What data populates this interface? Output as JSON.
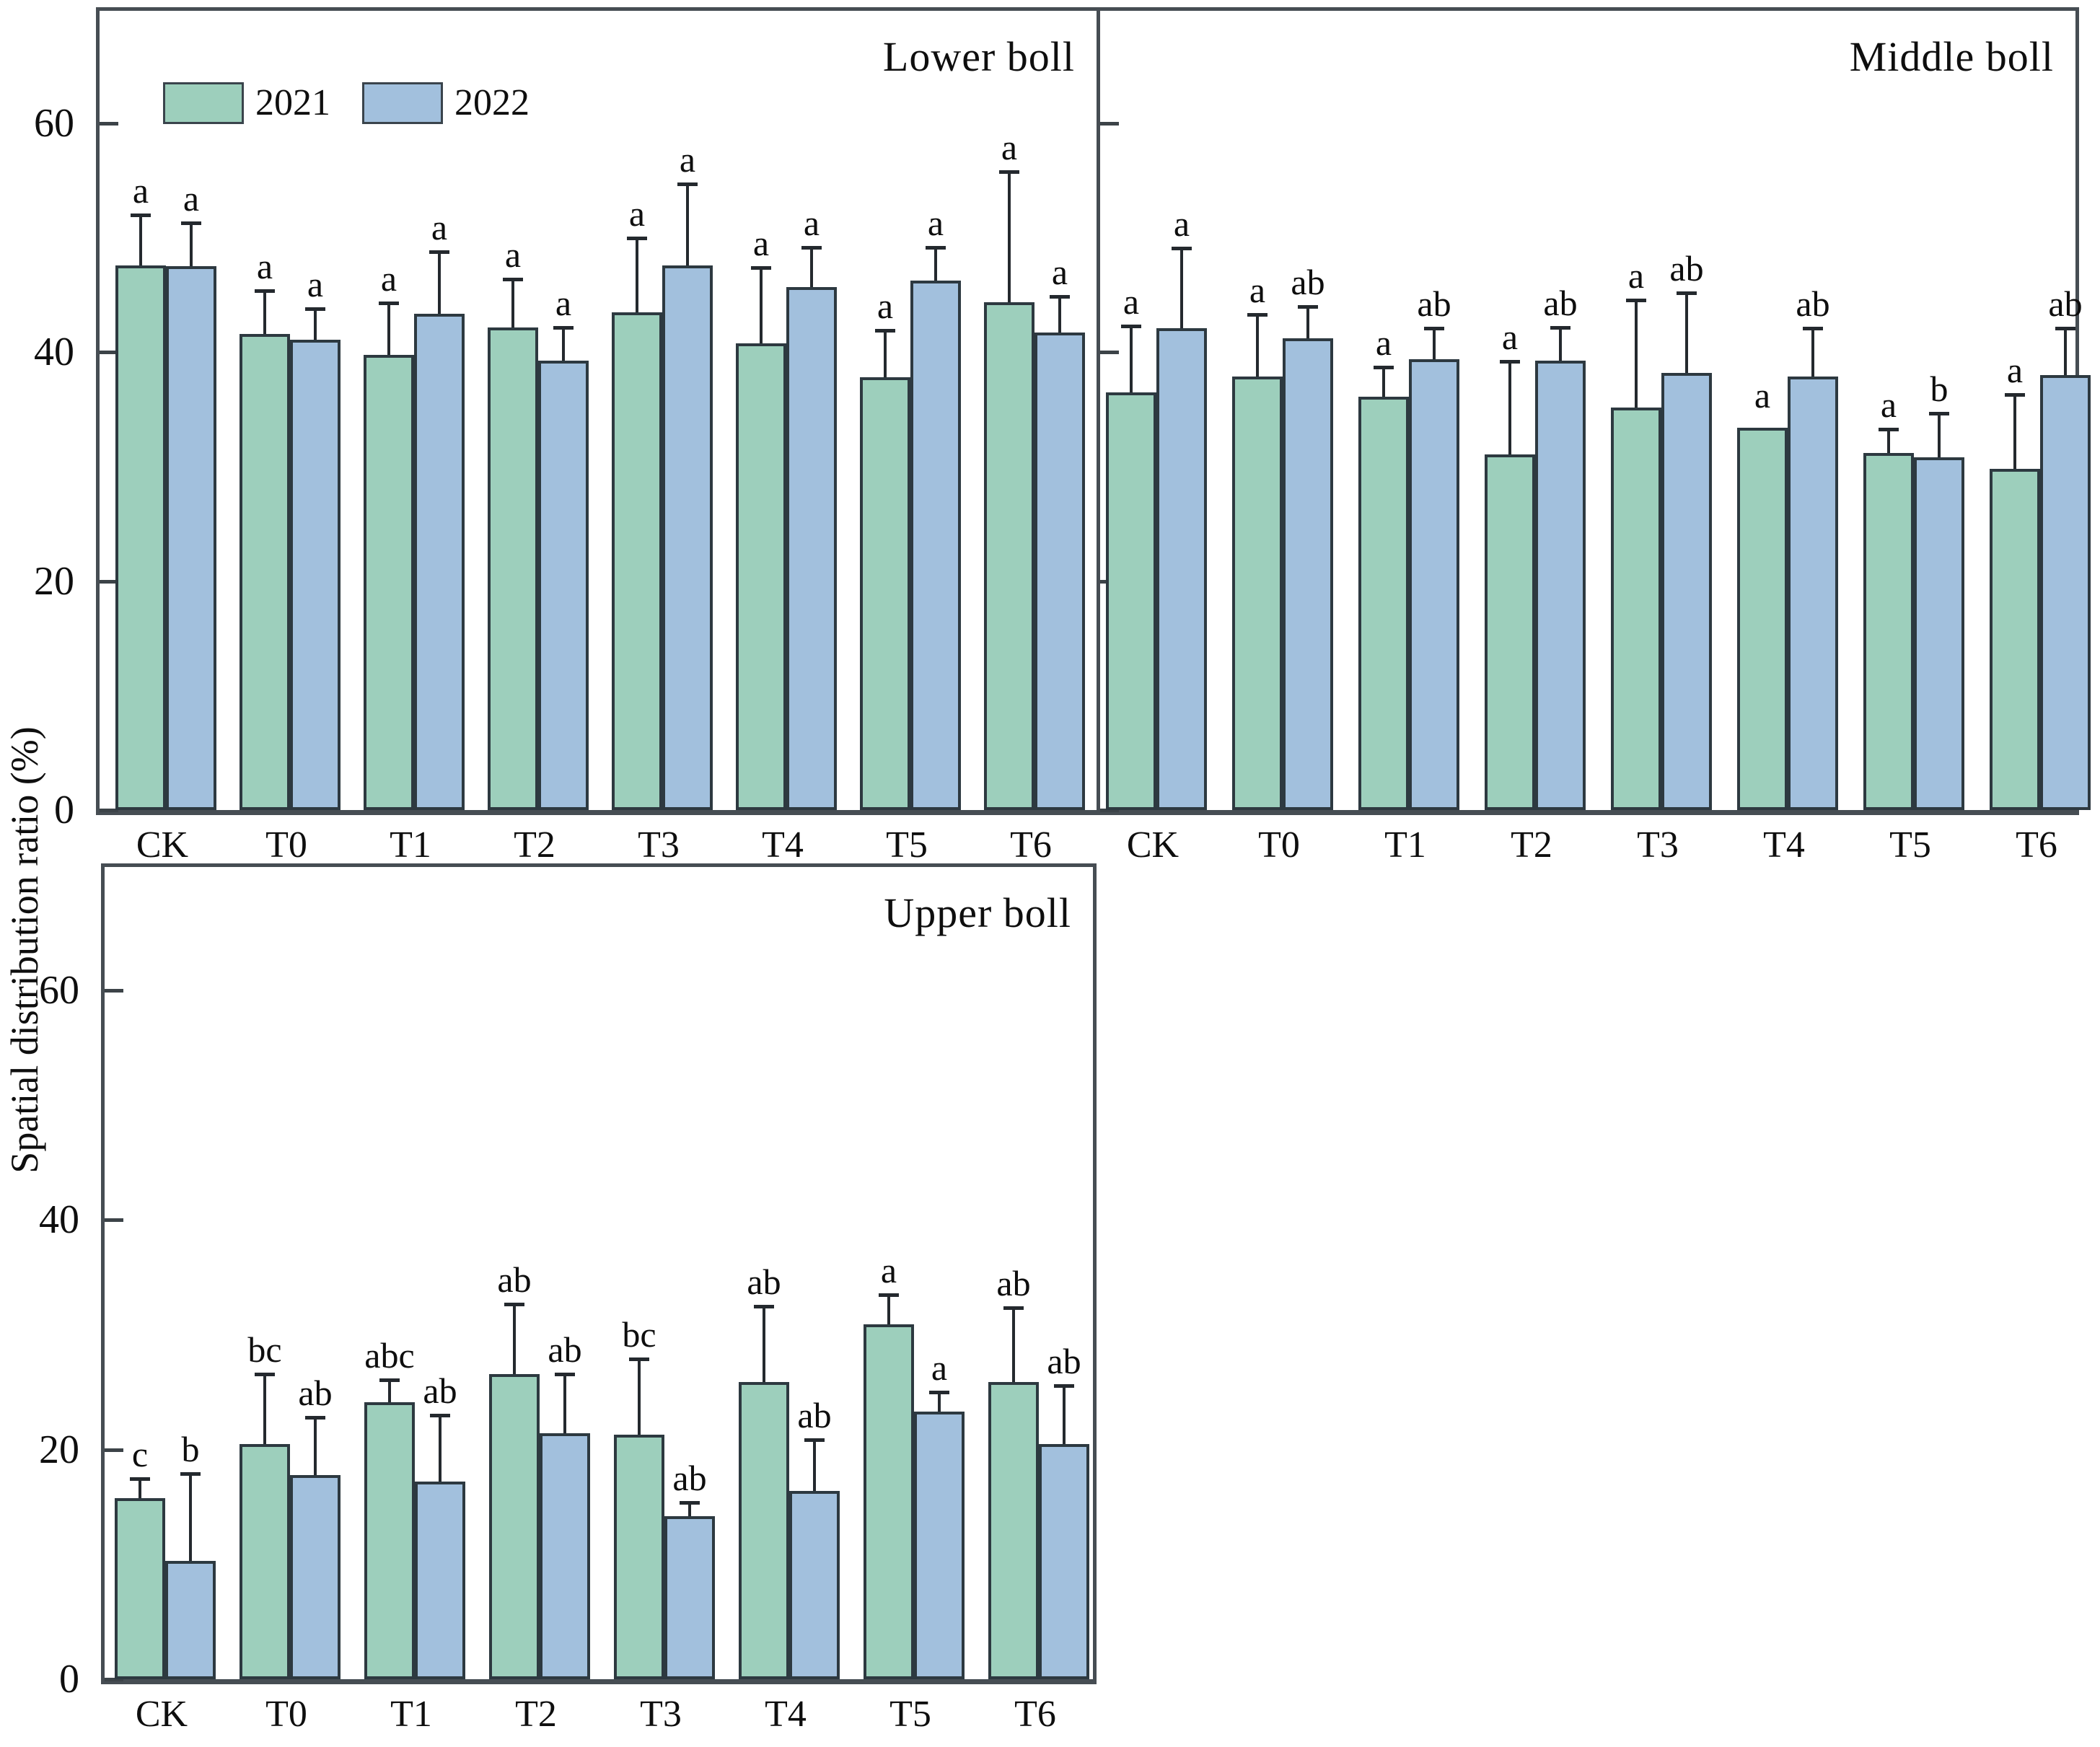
{
  "figure": {
    "ylabel": "Spatial distribution ratio (%)",
    "colors": {
      "series_2021": "#9dcfbc",
      "series_2022": "#a2c0dd",
      "bar_border": "#2d3940",
      "frame": "#464d53",
      "error_bar": "#24292e",
      "text": "#0e0e0e"
    },
    "legend": [
      {
        "label": "2021",
        "color": "#9dcfbc"
      },
      {
        "label": "2022",
        "color": "#a2c0dd"
      }
    ]
  },
  "chart_data": [
    {
      "type": "bar",
      "title": "Lower boll",
      "categories": [
        "CK",
        "T0",
        "T1",
        "T2",
        "T3",
        "T4",
        "T5",
        "T6"
      ],
      "yticks": [
        0,
        20,
        40,
        60
      ],
      "ylim": [
        0,
        70.6
      ],
      "grid": false,
      "legend_position": "top-left",
      "series": [
        {
          "name": "2021",
          "values": [
            47.6,
            41.6,
            39.8,
            42.2,
            43.5,
            40.8,
            37.8,
            44.4
          ],
          "errors": [
            4.2,
            3.6,
            4.3,
            4.0,
            6.3,
            6.4,
            3.9,
            11.2
          ],
          "letters": [
            "a",
            "a",
            "a",
            "a",
            "a",
            "a",
            "a",
            "a"
          ]
        },
        {
          "name": "2022",
          "values": [
            47.5,
            41.1,
            43.4,
            39.3,
            47.6,
            45.7,
            46.3,
            41.7
          ],
          "errors": [
            3.6,
            2.5,
            5.2,
            2.7,
            6.9,
            3.3,
            2.7,
            3.0
          ],
          "letters": [
            "a",
            "a",
            "a",
            "a",
            "a",
            "a",
            "a",
            "a"
          ]
        }
      ]
    },
    {
      "type": "bar",
      "title": "Middle boll",
      "categories": [
        "CK",
        "T0",
        "T1",
        "T2",
        "T3",
        "T4",
        "T5",
        "T6"
      ],
      "yticks": [
        0,
        20,
        40,
        60
      ],
      "ylim": [
        0,
        70.6
      ],
      "grid": false,
      "legend_position": "none",
      "series": [
        {
          "name": "2021",
          "values": [
            36.5,
            37.9,
            36.1,
            31.1,
            35.2,
            33.4,
            31.2,
            29.8
          ],
          "errors": [
            5.6,
            5.2,
            2.4,
            7.9,
            9.2,
            0.5,
            1.9,
            6.3
          ],
          "letters": [
            "a",
            "a",
            "a",
            "a",
            "a",
            "a",
            "a",
            "a"
          ]
        },
        {
          "name": "2022",
          "values": [
            42.1,
            41.2,
            39.4,
            39.3,
            38.2,
            37.9,
            30.8,
            38.0
          ],
          "errors": [
            6.8,
            2.6,
            2.5,
            2.7,
            6.8,
            4.0,
            3.7,
            3.9
          ],
          "letters": [
            "a",
            "ab",
            "ab",
            "ab",
            "ab",
            "ab",
            "b",
            "ab"
          ]
        }
      ]
    },
    {
      "type": "bar",
      "title": "Upper boll",
      "categories": [
        "CK",
        "T0",
        "T1",
        "T2",
        "T3",
        "T4",
        "T5",
        "T6"
      ],
      "yticks": [
        0,
        20,
        40,
        60
      ],
      "ylim": [
        0,
        71.5
      ],
      "grid": false,
      "legend_position": "none",
      "series": [
        {
          "name": "2021",
          "values": [
            15.8,
            20.5,
            24.1,
            26.6,
            21.3,
            25.9,
            30.9,
            25.9
          ],
          "errors": [
            1.5,
            5.9,
            1.8,
            5.9,
            6.4,
            6.4,
            2.4,
            6.3
          ],
          "letters": [
            "c",
            "bc",
            "abc",
            "ab",
            "bc",
            "ab",
            "a",
            "ab"
          ]
        },
        {
          "name": "2022",
          "values": [
            10.3,
            17.8,
            17.2,
            21.4,
            14.2,
            16.4,
            23.3,
            20.5
          ],
          "errors": [
            7.4,
            4.8,
            5.6,
            5.0,
            1.0,
            4.3,
            1.5,
            4.9
          ],
          "letters": [
            "b",
            "ab",
            "ab",
            "ab",
            "ab",
            "ab",
            "a",
            "ab"
          ]
        }
      ]
    }
  ]
}
